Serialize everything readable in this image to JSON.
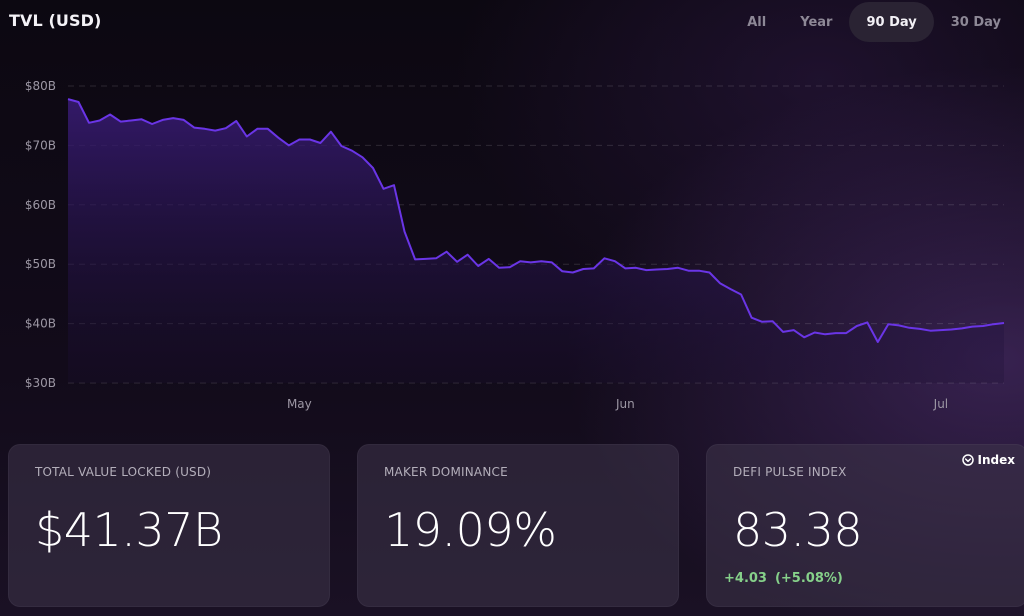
{
  "header": {
    "title": "TVL (USD)",
    "range_tabs": [
      {
        "label": "All",
        "active": false
      },
      {
        "label": "Year",
        "active": false
      },
      {
        "label": "90 Day",
        "active": true
      },
      {
        "label": "30 Day",
        "active": false
      }
    ]
  },
  "chart_data": {
    "type": "area",
    "title": "",
    "xlabel": "",
    "ylabel": "",
    "y_ticks": [
      "$30B",
      "$40B",
      "$50B",
      "$60B",
      "$70B",
      "$80B"
    ],
    "x_ticks": [
      {
        "label": "May",
        "day": 22
      },
      {
        "label": "Jun",
        "day": 53
      },
      {
        "label": "Jul",
        "day": 83
      }
    ],
    "ylim": [
      30,
      80
    ],
    "xlim": [
      0,
      89
    ],
    "unit": "Billion USD",
    "line_color": "#6a35e6",
    "fill_color": "#3a1c78",
    "grid": "horizontal dashed",
    "series": [
      {
        "values": [
          77.8,
          77.3,
          73.8,
          74.2,
          75.2,
          74.0,
          74.2,
          74.4,
          73.6,
          74.3,
          74.6,
          74.3,
          73.0,
          72.8,
          72.5,
          72.9,
          74.1,
          71.5,
          72.8,
          72.8,
          71.3,
          70.0,
          71.0,
          71.0,
          70.4,
          72.3,
          69.9,
          69.1,
          68.0,
          66.2,
          62.7,
          63.3,
          55.5,
          50.8,
          50.9,
          51.0,
          52.1,
          50.4,
          51.6,
          49.7,
          50.9,
          49.4,
          49.5,
          50.5,
          50.3,
          50.5,
          50.3,
          48.8,
          48.6,
          49.2,
          49.3,
          51.0,
          50.5,
          49.3,
          49.4,
          49.0,
          49.1,
          49.2,
          49.4,
          48.9,
          48.9,
          48.6,
          46.8,
          45.8,
          44.9,
          41.0,
          40.3,
          40.4,
          38.6,
          38.9,
          37.7,
          38.5,
          38.2,
          38.4,
          38.4,
          39.6,
          40.2,
          36.9,
          39.9,
          39.7,
          39.3,
          39.1,
          38.8,
          38.9,
          39.0,
          39.2,
          39.5,
          39.6,
          39.9,
          40.1
        ]
      }
    ]
  },
  "stats": [
    {
      "label": "TOTAL VALUE LOCKED (USD)",
      "value": "$41.37B"
    },
    {
      "label": "MAKER DOMINANCE",
      "value": "19.09%"
    },
    {
      "label": "DEFI PULSE INDEX",
      "value": "83.38",
      "change": "+4.03",
      "change_pct": "(+5.08%)",
      "link_label": "Index",
      "link_icon": "chevron-circle-icon"
    }
  ],
  "colors": {
    "positive": "#86d18a",
    "accent": "#6a35e6"
  }
}
